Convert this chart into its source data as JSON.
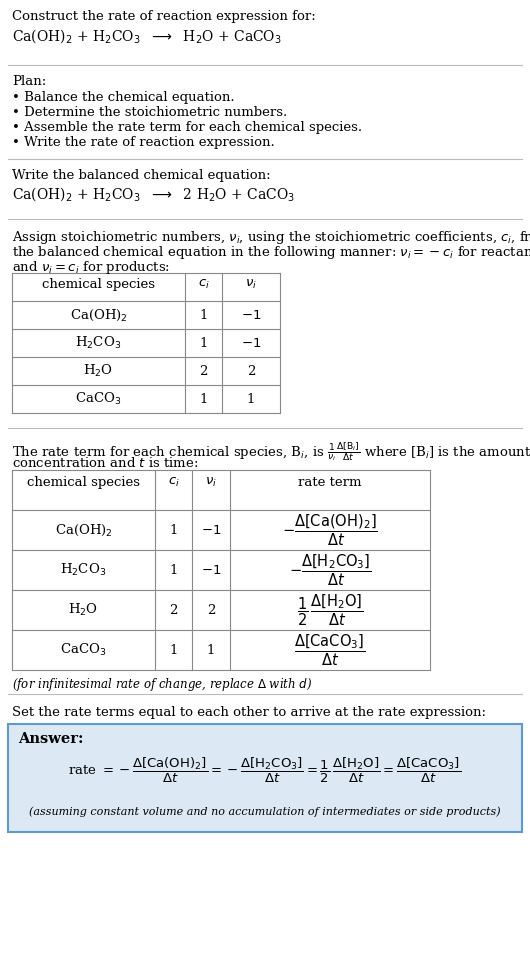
{
  "bg_color": "#ffffff",
  "text_color": "#000000",
  "title_line1": "Construct the rate of reaction expression for:",
  "reaction_unbalanced": "Ca(OH)$_2$ + H$_2$CO$_3$  $\\longrightarrow$  H$_2$O + CaCO$_3$",
  "plan_header": "Plan:",
  "plan_items": [
    "Balance the chemical equation.",
    "Determine the stoichiometric numbers.",
    "Assemble the rate term for each chemical species.",
    "Write the rate of reaction expression."
  ],
  "balanced_header": "Write the balanced chemical equation:",
  "reaction_balanced": "Ca(OH)$_2$ + H$_2$CO$_3$  $\\longrightarrow$  2 H$_2$O + CaCO$_3$",
  "assign_text1": "Assign stoichiometric numbers, $\\nu_i$, using the stoichiometric coefficients, $c_i$, from",
  "assign_text2": "the balanced chemical equation in the following manner: $\\nu_i = -c_i$ for reactants",
  "assign_text3": "and $\\nu_i = c_i$ for products:",
  "table1_headers": [
    "chemical species",
    "$c_i$",
    "$\\nu_i$"
  ],
  "table1_rows": [
    [
      "Ca(OH)$_2$",
      "1",
      "$-1$"
    ],
    [
      "H$_2$CO$_3$",
      "1",
      "$-1$"
    ],
    [
      "H$_2$O",
      "2",
      "2"
    ],
    [
      "CaCO$_3$",
      "1",
      "1"
    ]
  ],
  "rate_text1": "The rate term for each chemical species, B$_i$, is $\\frac{1}{\\nu_i}\\frac{\\Delta[\\mathrm{B}_i]}{\\Delta t}$ where [B$_i$] is the amount",
  "rate_text2": "concentration and $t$ is time:",
  "table2_headers": [
    "chemical species",
    "$c_i$",
    "$\\nu_i$",
    "rate term"
  ],
  "table2_rows": [
    [
      "Ca(OH)$_2$",
      "1",
      "$-1$",
      "$-\\dfrac{\\Delta[\\mathrm{Ca(OH)_2}]}{\\Delta t}$"
    ],
    [
      "H$_2$CO$_3$",
      "1",
      "$-1$",
      "$-\\dfrac{\\Delta[\\mathrm{H_2CO_3}]}{\\Delta t}$"
    ],
    [
      "H$_2$O",
      "2",
      "2",
      "$\\dfrac{1}{2}\\,\\dfrac{\\Delta[\\mathrm{H_2O}]}{\\Delta t}$"
    ],
    [
      "CaCO$_3$",
      "1",
      "1",
      "$\\dfrac{\\Delta[\\mathrm{CaCO_3}]}{\\Delta t}$"
    ]
  ],
  "infinitesimal_note": "(for infinitesimal rate of change, replace $\\Delta$ with $d$)",
  "set_equal_text": "Set the rate terms equal to each other to arrive at the rate expression:",
  "answer_label": "Answer:",
  "answer_bg": "#dce9f5",
  "answer_border": "#5b9bd5",
  "rate_expression": "rate $= -\\dfrac{\\Delta[\\mathrm{Ca(OH)_2}]}{\\Delta t} = -\\dfrac{\\Delta[\\mathrm{H_2CO_3}]}{\\Delta t} = \\dfrac{1}{2}\\,\\dfrac{\\Delta[\\mathrm{H_2O}]}{\\Delta t} = \\dfrac{\\Delta[\\mathrm{CaCO_3}]}{\\Delta t}$",
  "assuming_note": "(assuming constant volume and no accumulation of intermediates or side products)"
}
